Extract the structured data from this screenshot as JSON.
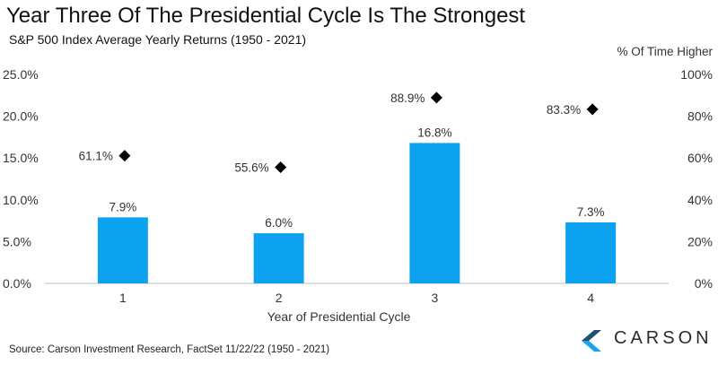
{
  "title": "Year Three Of The Presidential Cycle Is The Strongest",
  "subtitle": "S&P 500 Index Average Yearly Returns (1950 - 2021)",
  "source": "Source: Carson Investment Research, FactSet 11/22/22 (1950 - 2021)",
  "logo": {
    "text": "CARSON",
    "icon": "carson-chevron-logo",
    "colors": [
      "#1f4e79",
      "#1aa3e8"
    ]
  },
  "colors": {
    "bar": "#0da2f0",
    "marker": "#000000"
  },
  "chart_data": {
    "type": "bar",
    "categories": [
      "1",
      "2",
      "3",
      "4"
    ],
    "xlabel": "Year of Presidential Cycle",
    "ylabel_right": "% Of Time Higher",
    "ylim": [
      0,
      25
    ],
    "ylim_right": [
      0,
      100
    ],
    "yticks": [
      "0.0%",
      "5.0%",
      "10.0%",
      "15.0%",
      "20.0%",
      "25.0%"
    ],
    "yticks_right": [
      "0%",
      "20%",
      "40%",
      "60%",
      "80%",
      "100%"
    ],
    "series": [
      {
        "values": [
          7.9,
          6.0,
          16.8,
          7.3
        ],
        "labels": [
          "7.9%",
          "6.0%",
          "16.8%",
          "7.3%"
        ],
        "axis": "left",
        "style": "bar"
      },
      {
        "values": [
          61.1,
          55.6,
          88.9,
          83.3
        ],
        "labels": [
          "61.1%",
          "55.6%",
          "88.9%",
          "83.3%"
        ],
        "axis": "right",
        "style": "diamond-marker"
      }
    ],
    "grid": false,
    "legend": "none"
  }
}
